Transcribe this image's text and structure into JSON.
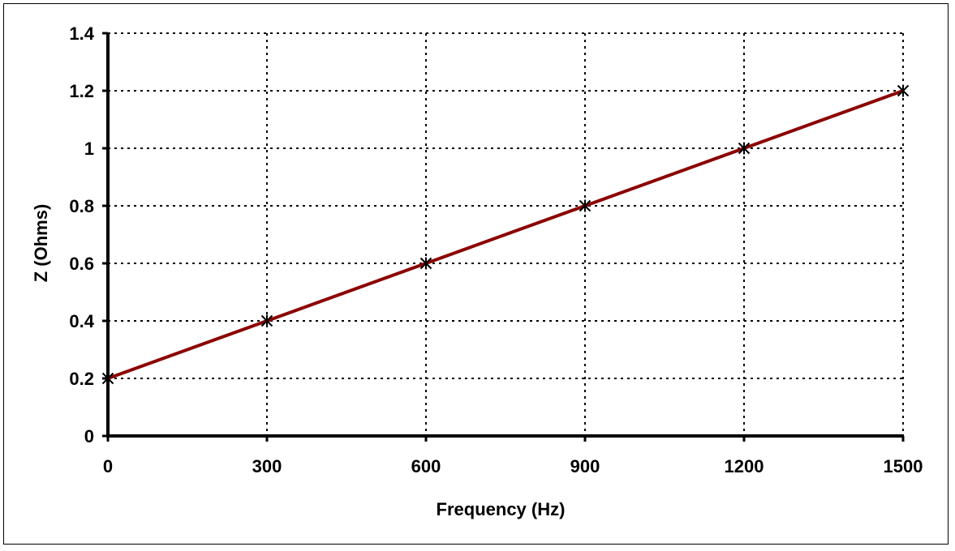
{
  "chart_data": {
    "type": "line",
    "title": "",
    "xlabel": "Frequency (Hz)",
    "ylabel": "Z (Ohms)",
    "x": [
      0,
      300,
      600,
      900,
      1200,
      1500
    ],
    "series": [
      {
        "values": [
          0.2,
          0.4,
          0.6,
          0.8,
          1.0,
          1.2
        ],
        "color": "#8b0000",
        "marker": "asterisk"
      }
    ],
    "xlim": [
      0,
      1500
    ],
    "ylim": [
      0,
      1.4
    ],
    "xticks": [
      "0",
      "300",
      "600",
      "900",
      "1200",
      "1500"
    ],
    "yticks": [
      "0",
      "0.2",
      "0.4",
      "0.6",
      "0.8",
      "1",
      "1.2",
      "1.4"
    ],
    "grid": true,
    "grid_style": "dotted",
    "legend": "none"
  }
}
